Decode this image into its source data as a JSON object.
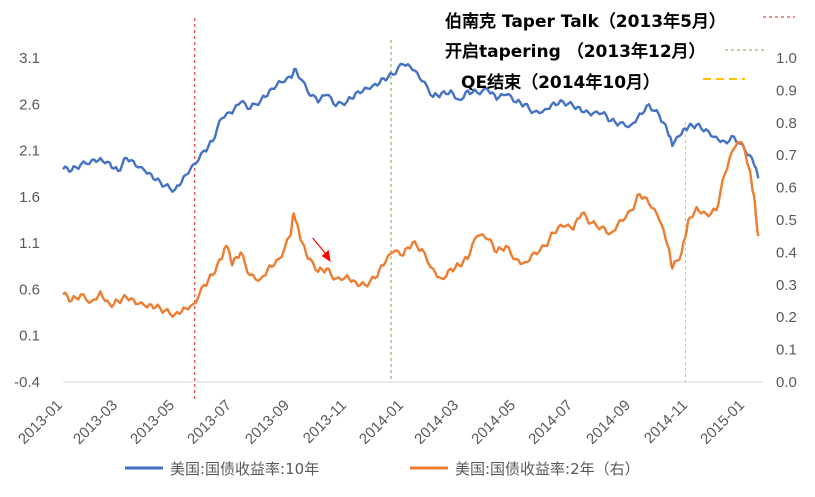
{
  "chart_data": {
    "type": "line",
    "title": "",
    "x_ticks": [
      "2013-01",
      "2013-03",
      "2013-05",
      "2013-07",
      "2013-09",
      "2013-11",
      "2014-01",
      "2014-03",
      "2014-05",
      "2014-07",
      "2014-09",
      "2014-11",
      "2015-01"
    ],
    "y_left": {
      "ticks": [
        "3.1",
        "2.6",
        "2.1",
        "1.6",
        "1.1",
        "0.6",
        "0.1",
        "-0.4"
      ],
      "range": [
        -0.4,
        3.1
      ]
    },
    "y_right": {
      "ticks": [
        "1.0",
        "0.9",
        "0.8",
        "0.7",
        "0.6",
        "0.5",
        "0.4",
        "0.3",
        "0.2",
        "0.1",
        "0.0"
      ],
      "range": [
        0.0,
        1.0
      ]
    },
    "series": [
      {
        "name": "美国:国债收益率:10年",
        "axis": "left",
        "color": "#4472C4",
        "points": [
          [
            "2013-01-01",
            1.9
          ],
          [
            "2013-01-10",
            1.88
          ],
          [
            "2013-01-20",
            1.95
          ],
          [
            "2013-02-01",
            2.0
          ],
          [
            "2013-02-10",
            2.02
          ],
          [
            "2013-02-20",
            1.97
          ],
          [
            "2013-03-01",
            1.88
          ],
          [
            "2013-03-10",
            2.02
          ],
          [
            "2013-03-20",
            1.93
          ],
          [
            "2013-04-01",
            1.85
          ],
          [
            "2013-04-10",
            1.78
          ],
          [
            "2013-04-20",
            1.72
          ],
          [
            "2013-05-01",
            1.68
          ],
          [
            "2013-05-10",
            1.82
          ],
          [
            "2013-05-20",
            1.95
          ],
          [
            "2013-06-01",
            2.1
          ],
          [
            "2013-06-10",
            2.2
          ],
          [
            "2013-06-20",
            2.45
          ],
          [
            "2013-07-01",
            2.5
          ],
          [
            "2013-07-10",
            2.62
          ],
          [
            "2013-07-20",
            2.55
          ],
          [
            "2013-08-01",
            2.65
          ],
          [
            "2013-08-10",
            2.75
          ],
          [
            "2013-08-20",
            2.85
          ],
          [
            "2013-09-01",
            2.9
          ],
          [
            "2013-09-07",
            2.98
          ],
          [
            "2013-09-20",
            2.73
          ],
          [
            "2013-10-01",
            2.62
          ],
          [
            "2013-10-10",
            2.7
          ],
          [
            "2013-10-20",
            2.58
          ],
          [
            "2013-11-01",
            2.63
          ],
          [
            "2013-11-10",
            2.72
          ],
          [
            "2013-11-20",
            2.78
          ],
          [
            "2013-12-01",
            2.82
          ],
          [
            "2013-12-10",
            2.88
          ],
          [
            "2013-12-20",
            2.92
          ],
          [
            "2013-12-31",
            3.03
          ],
          [
            "2014-01-10",
            2.97
          ],
          [
            "2014-01-20",
            2.85
          ],
          [
            "2014-02-01",
            2.68
          ],
          [
            "2014-02-10",
            2.72
          ],
          [
            "2014-02-20",
            2.75
          ],
          [
            "2014-03-01",
            2.65
          ],
          [
            "2014-03-10",
            2.75
          ],
          [
            "2014-03-20",
            2.73
          ],
          [
            "2014-04-01",
            2.75
          ],
          [
            "2014-04-10",
            2.65
          ],
          [
            "2014-04-20",
            2.7
          ],
          [
            "2014-05-01",
            2.62
          ],
          [
            "2014-05-10",
            2.6
          ],
          [
            "2014-05-20",
            2.52
          ],
          [
            "2014-06-01",
            2.55
          ],
          [
            "2014-06-10",
            2.62
          ],
          [
            "2014-06-20",
            2.63
          ],
          [
            "2014-07-01",
            2.58
          ],
          [
            "2014-07-10",
            2.52
          ],
          [
            "2014-07-20",
            2.48
          ],
          [
            "2014-08-01",
            2.5
          ],
          [
            "2014-08-10",
            2.42
          ],
          [
            "2014-08-20",
            2.4
          ],
          [
            "2014-09-01",
            2.38
          ],
          [
            "2014-09-10",
            2.5
          ],
          [
            "2014-09-20",
            2.6
          ],
          [
            "2014-10-01",
            2.48
          ],
          [
            "2014-10-10",
            2.3
          ],
          [
            "2014-10-15",
            2.15
          ],
          [
            "2014-10-25",
            2.28
          ],
          [
            "2014-11-01",
            2.35
          ],
          [
            "2014-11-10",
            2.38
          ],
          [
            "2014-11-20",
            2.33
          ],
          [
            "2014-12-01",
            2.25
          ],
          [
            "2014-12-10",
            2.2
          ],
          [
            "2014-12-20",
            2.25
          ],
          [
            "2015-01-01",
            2.1
          ],
          [
            "2015-01-10",
            1.96
          ],
          [
            "2015-01-15",
            1.8
          ]
        ]
      },
      {
        "name": "美国:国债收益率:2年（右）",
        "axis": "right",
        "color": "#ED7D31",
        "points": [
          [
            "2013-01-01",
            0.27
          ],
          [
            "2013-01-10",
            0.25
          ],
          [
            "2013-01-20",
            0.27
          ],
          [
            "2013-02-01",
            0.25
          ],
          [
            "2013-02-10",
            0.28
          ],
          [
            "2013-02-20",
            0.24
          ],
          [
            "2013-03-01",
            0.25
          ],
          [
            "2013-03-10",
            0.26
          ],
          [
            "2013-03-20",
            0.24
          ],
          [
            "2013-04-01",
            0.23
          ],
          [
            "2013-04-10",
            0.23
          ],
          [
            "2013-04-20",
            0.22
          ],
          [
            "2013-05-01",
            0.21
          ],
          [
            "2013-05-10",
            0.23
          ],
          [
            "2013-05-20",
            0.24
          ],
          [
            "2013-06-01",
            0.3
          ],
          [
            "2013-06-10",
            0.33
          ],
          [
            "2013-06-20",
            0.38
          ],
          [
            "2013-06-25",
            0.42
          ],
          [
            "2013-07-01",
            0.36
          ],
          [
            "2013-07-10",
            0.4
          ],
          [
            "2013-07-20",
            0.33
          ],
          [
            "2013-08-01",
            0.32
          ],
          [
            "2013-08-10",
            0.36
          ],
          [
            "2013-08-20",
            0.38
          ],
          [
            "2013-09-01",
            0.45
          ],
          [
            "2013-09-05",
            0.52
          ],
          [
            "2013-09-12",
            0.44
          ],
          [
            "2013-09-20",
            0.38
          ],
          [
            "2013-10-01",
            0.34
          ],
          [
            "2013-10-10",
            0.35
          ],
          [
            "2013-10-20",
            0.32
          ],
          [
            "2013-11-01",
            0.33
          ],
          [
            "2013-11-10",
            0.31
          ],
          [
            "2013-11-20",
            0.3
          ],
          [
            "2013-12-01",
            0.32
          ],
          [
            "2013-12-10",
            0.36
          ],
          [
            "2013-12-20",
            0.4
          ],
          [
            "2013-12-31",
            0.39
          ],
          [
            "2014-01-10",
            0.43
          ],
          [
            "2014-01-20",
            0.41
          ],
          [
            "2014-02-01",
            0.35
          ],
          [
            "2014-02-10",
            0.32
          ],
          [
            "2014-02-20",
            0.35
          ],
          [
            "2014-03-01",
            0.36
          ],
          [
            "2014-03-10",
            0.38
          ],
          [
            "2014-03-20",
            0.45
          ],
          [
            "2014-04-01",
            0.44
          ],
          [
            "2014-04-10",
            0.4
          ],
          [
            "2014-04-20",
            0.42
          ],
          [
            "2014-05-01",
            0.38
          ],
          [
            "2014-05-10",
            0.37
          ],
          [
            "2014-05-20",
            0.4
          ],
          [
            "2014-06-01",
            0.42
          ],
          [
            "2014-06-10",
            0.46
          ],
          [
            "2014-06-20",
            0.48
          ],
          [
            "2014-07-01",
            0.47
          ],
          [
            "2014-07-10",
            0.52
          ],
          [
            "2014-07-20",
            0.49
          ],
          [
            "2014-08-01",
            0.48
          ],
          [
            "2014-08-10",
            0.46
          ],
          [
            "2014-08-20",
            0.5
          ],
          [
            "2014-09-01",
            0.53
          ],
          [
            "2014-09-10",
            0.58
          ],
          [
            "2014-09-20",
            0.55
          ],
          [
            "2014-10-01",
            0.5
          ],
          [
            "2014-10-10",
            0.42
          ],
          [
            "2014-10-15",
            0.35
          ],
          [
            "2014-10-25",
            0.4
          ],
          [
            "2014-11-01",
            0.5
          ],
          [
            "2014-11-10",
            0.54
          ],
          [
            "2014-11-20",
            0.52
          ],
          [
            "2014-12-01",
            0.53
          ],
          [
            "2014-12-10",
            0.64
          ],
          [
            "2014-12-20",
            0.72
          ],
          [
            "2014-12-28",
            0.74
          ],
          [
            "2015-01-05",
            0.66
          ],
          [
            "2015-01-10",
            0.58
          ],
          [
            "2015-01-15",
            0.45
          ]
        ]
      }
    ],
    "annotations": [
      {
        "label": "伯南克 Taper Talk（2013年5月）",
        "date": "2013-05-22",
        "color": "#E31A1C",
        "style": "dashed"
      },
      {
        "label": "开启tapering （2013年12月）",
        "date": "2013-12-18",
        "color": "#70AD47",
        "style": "dashed"
      },
      {
        "label": "QE结束（2014年10月）",
        "date": "2014-10-29",
        "color": "#FFC000",
        "style": "dashed"
      }
    ],
    "arrow_note": {
      "date": "2013-10-08",
      "color": "#FF0000"
    },
    "legend_position": "bottom",
    "grid": false
  }
}
